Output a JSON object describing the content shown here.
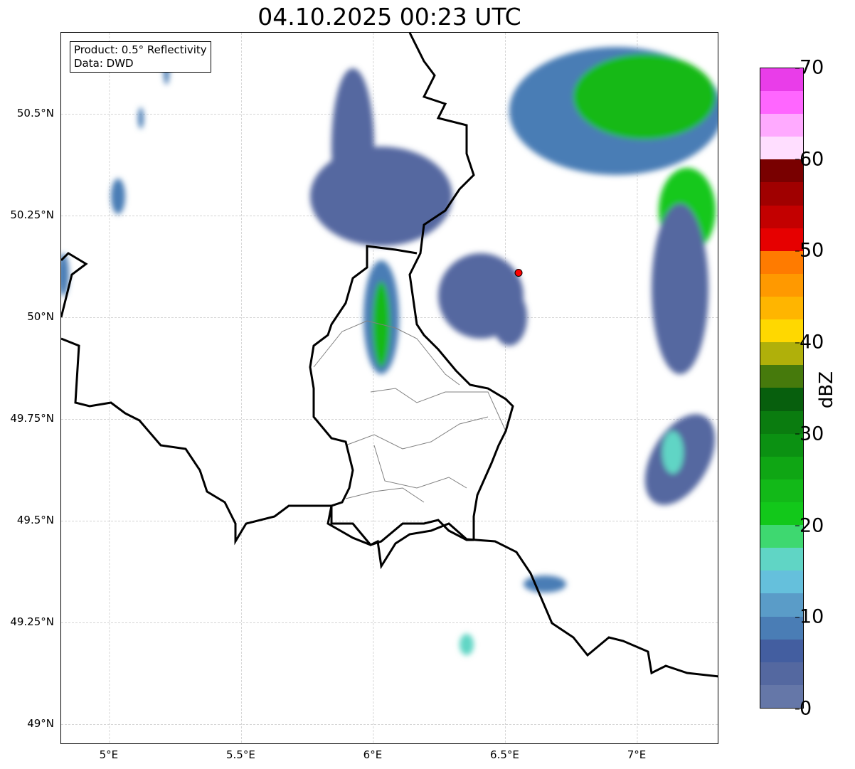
{
  "title": "04.10.2025 00:23 UTC",
  "info": {
    "line1": "Product: 0.5° Reflectivity",
    "line2": "Data: DWD"
  },
  "map": {
    "lon_range": [
      4.817,
      7.31
    ],
    "lat_range": [
      48.95,
      50.7
    ],
    "x_ticks": [
      {
        "v": 5,
        "label": "5°E"
      },
      {
        "v": 5.5,
        "label": "5.5°E"
      },
      {
        "v": 6,
        "label": "6°E"
      },
      {
        "v": 6.5,
        "label": "6.5°E"
      },
      {
        "v": 7,
        "label": "7°E"
      }
    ],
    "y_ticks": [
      {
        "v": 50.5,
        "label": "50.5°N"
      },
      {
        "v": 50.25,
        "label": "50.25°N"
      },
      {
        "v": 50,
        "label": "50°N"
      },
      {
        "v": 49.75,
        "label": "49.75°N"
      },
      {
        "v": 49.5,
        "label": "49.5°N"
      },
      {
        "v": 49.25,
        "label": "49.25°N"
      },
      {
        "v": 49,
        "label": "49°N"
      }
    ],
    "radar_site": {
      "lon": 6.55,
      "lat": 50.11,
      "color": "#ff0000"
    }
  },
  "colorbar": {
    "label": "dBZ",
    "min": 0,
    "max": 70,
    "ticks": [
      "0",
      "10",
      "20",
      "30",
      "40",
      "50",
      "60",
      "70"
    ],
    "colors": [
      "#6577a8",
      "#5468a0",
      "#435ea0",
      "#4a7db5",
      "#5a9cc8",
      "#65c0dc",
      "#60d5c5",
      "#3ed870",
      "#12c81a",
      "#12b918",
      "#0fa614",
      "#0b9112",
      "#0a7c0f",
      "#075f0d",
      "#467a0c",
      "#b0b00a",
      "#ffd800",
      "#ffb500",
      "#ff9900",
      "#ff7b00",
      "#e60000",
      "#c30000",
      "#a00000",
      "#790000",
      "#ffdeff",
      "#ffaaff",
      "#ff66ff",
      "#e93de9"
    ]
  }
}
